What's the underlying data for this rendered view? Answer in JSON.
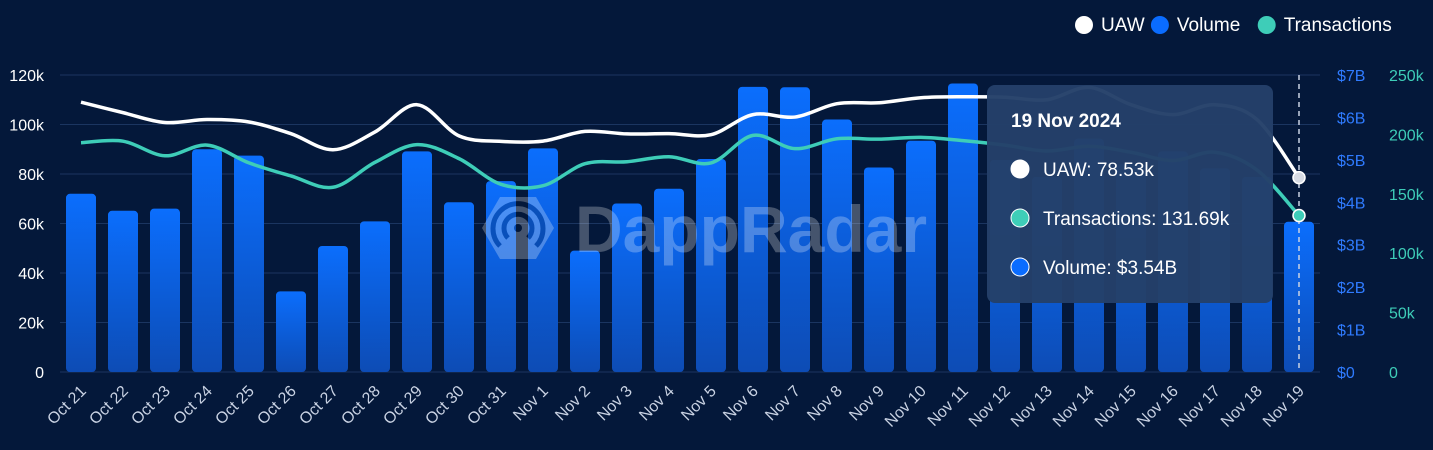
{
  "watermark": "DappRadar",
  "chart_data": {
    "type": "bar",
    "categories": [
      "Oct 21",
      "Oct 22",
      "Oct 23",
      "Oct 24",
      "Oct 25",
      "Oct 26",
      "Oct 27",
      "Oct 28",
      "Oct 29",
      "Oct 30",
      "Oct 31",
      "Nov 1",
      "Nov 2",
      "Nov 3",
      "Nov 4",
      "Nov 5",
      "Nov 6",
      "Nov 7",
      "Nov 8",
      "Nov 9",
      "Nov 10",
      "Nov 11",
      "Nov 12",
      "Nov 13",
      "Nov 14",
      "Nov 15",
      "Nov 16",
      "Nov 17",
      "Nov 18",
      "Nov 19"
    ],
    "legend": [
      {
        "name": "UAW",
        "color": "#ffffff"
      },
      {
        "name": "Volume",
        "color": "#0a6cff"
      },
      {
        "name": "Transactions",
        "color": "#3ecdb8"
      }
    ],
    "legend_position": "top-right",
    "axes": {
      "left": {
        "ticks": [
          "0",
          "20k",
          "40k",
          "60k",
          "80k",
          "100k",
          "120k"
        ],
        "range": [
          0,
          120000
        ],
        "color": "#ffffff"
      },
      "right_volume": {
        "ticks": [
          "$0",
          "$1B",
          "$2B",
          "$3B",
          "$4B",
          "$5B",
          "$6B",
          "$7B"
        ],
        "range": [
          0,
          7
        ],
        "color": "#2f7bff"
      },
      "right_transactions": {
        "ticks": [
          "0",
          "50k",
          "100k",
          "150k",
          "200k",
          "250k"
        ],
        "range": [
          0,
          250000
        ],
        "color": "#3ecdb8"
      }
    },
    "grid": true,
    "series": [
      {
        "name": "Volume",
        "type": "bar",
        "axis": "right_volume",
        "unit": "B USD",
        "color": "#0a6cff",
        "values": [
          4.2,
          3.8,
          3.85,
          5.25,
          5.1,
          1.9,
          2.97,
          3.55,
          5.2,
          4.0,
          4.5,
          5.27,
          2.86,
          3.97,
          4.32,
          5.02,
          6.72,
          6.71,
          5.95,
          4.82,
          5.45,
          6.8,
          5.0,
          4.6,
          5.5,
          4.9,
          5.2,
          4.8,
          4.6,
          3.54
        ]
      },
      {
        "name": "UAW",
        "type": "line",
        "axis": "left",
        "color": "#ffffff",
        "values": [
          109000,
          104800,
          100800,
          102000,
          101000,
          96300,
          89800,
          97000,
          108000,
          95400,
          93200,
          93300,
          97200,
          96200,
          96300,
          95900,
          104000,
          103000,
          108400,
          108800,
          110800,
          111200,
          111000,
          110000,
          115000,
          108000,
          104000,
          108000,
          102000,
          78530
        ]
      },
      {
        "name": "Transactions",
        "type": "line",
        "axis": "right_transactions",
        "color": "#3ecdb8",
        "values": [
          193000,
          194300,
          182000,
          191000,
          176000,
          165000,
          155500,
          176500,
          191400,
          179600,
          158000,
          156800,
          175300,
          177000,
          181200,
          176000,
          199200,
          188000,
          196300,
          196000,
          197500,
          194800,
          191000,
          186000,
          190000,
          185000,
          178000,
          185000,
          170000,
          131690
        ]
      }
    ]
  },
  "tooltip": {
    "title": "19 Nov 2024",
    "items": [
      {
        "text": "UAW: 78.53k",
        "color": "#ffffff"
      },
      {
        "text": "Transactions: 131.69k",
        "color": "#3ecdb8"
      },
      {
        "text": "Volume: $3.54B",
        "color": "#0a6cff"
      }
    ]
  }
}
